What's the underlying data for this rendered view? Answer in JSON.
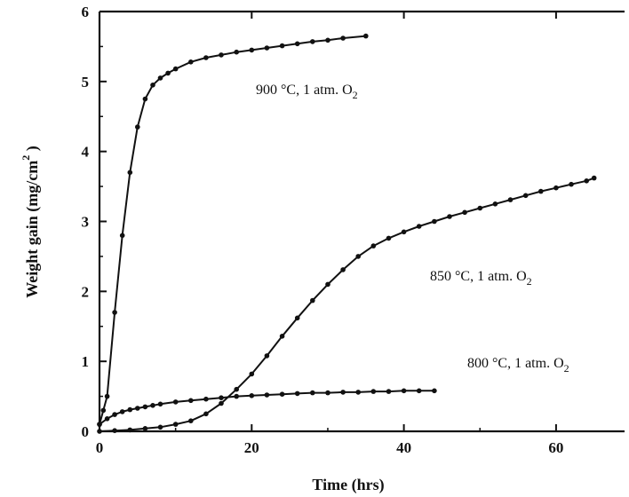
{
  "chart_data": {
    "type": "line",
    "xlabel": "Time (hrs)",
    "ylabel_main": "Weight gain  (mg/cm",
    "ylabel_sup": "2",
    "ylabel_close": " )",
    "xlim": [
      0,
      69
    ],
    "ylim": [
      0,
      6
    ],
    "xticks": [
      "0",
      "20",
      "40",
      "60"
    ],
    "yticks": [
      "0",
      "1",
      "2",
      "3",
      "4",
      "5",
      "6"
    ],
    "grid": false,
    "legend": "none",
    "series": [
      {
        "label_main": "900 °C, 1 atm. O",
        "label_sub": "2",
        "x": [
          0,
          0.5,
          1,
          2,
          3,
          4,
          5,
          6,
          7,
          8,
          9,
          10,
          12,
          14,
          16,
          18,
          20,
          22,
          24,
          26,
          28,
          30,
          32,
          35
        ],
        "y": [
          0.1,
          0.3,
          0.5,
          1.7,
          2.8,
          3.7,
          4.35,
          4.75,
          4.95,
          5.05,
          5.12,
          5.18,
          5.28,
          5.34,
          5.38,
          5.42,
          5.45,
          5.48,
          5.51,
          5.54,
          5.57,
          5.59,
          5.62,
          5.65
        ]
      },
      {
        "label_main": "850 °C, 1 atm. O",
        "label_sub": "2",
        "x": [
          0,
          2,
          4,
          6,
          8,
          10,
          12,
          14,
          16,
          18,
          20,
          22,
          24,
          26,
          28,
          30,
          32,
          34,
          36,
          38,
          40,
          42,
          44,
          46,
          48,
          50,
          52,
          54,
          56,
          58,
          60,
          62,
          64,
          65
        ],
        "y": [
          0,
          0.01,
          0.02,
          0.04,
          0.06,
          0.1,
          0.15,
          0.25,
          0.4,
          0.6,
          0.82,
          1.08,
          1.36,
          1.62,
          1.87,
          2.1,
          2.31,
          2.5,
          2.65,
          2.76,
          2.85,
          2.93,
          3.0,
          3.07,
          3.13,
          3.19,
          3.25,
          3.31,
          3.37,
          3.43,
          3.48,
          3.53,
          3.58,
          3.62
        ]
      },
      {
        "label_main": "800 °C, 1 atm. O",
        "label_sub": "2",
        "x": [
          0,
          1,
          2,
          3,
          4,
          5,
          6,
          7,
          8,
          10,
          12,
          14,
          16,
          18,
          20,
          22,
          24,
          26,
          28,
          30,
          32,
          34,
          36,
          38,
          40,
          42,
          44
        ],
        "y": [
          0.1,
          0.18,
          0.24,
          0.28,
          0.31,
          0.33,
          0.35,
          0.37,
          0.39,
          0.42,
          0.44,
          0.46,
          0.48,
          0.5,
          0.51,
          0.52,
          0.53,
          0.54,
          0.55,
          0.55,
          0.56,
          0.56,
          0.57,
          0.57,
          0.58,
          0.58,
          0.58
        ]
      }
    ]
  }
}
